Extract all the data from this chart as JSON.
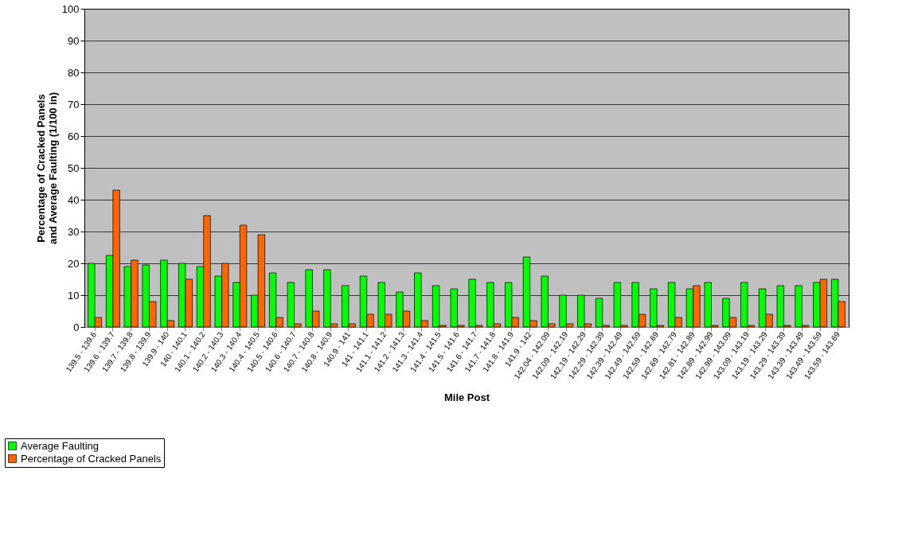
{
  "chart_data": {
    "type": "bar",
    "xlabel": "Mile Post",
    "ylabel": "Percentage of Cracked Panels and Average Faulting (1/100 in)",
    "categories": [
      "139.5 - 139.6",
      "139.6 - 139.7",
      "139.7 - 139.8",
      "139.8 - 139.9",
      "139.9 - 140",
      "140 - 140.1",
      "140.1 - 140.2",
      "140.2 - 140.3",
      "140.3 - 140.4",
      "140.4 - 140.5",
      "140.5 - 140.6",
      "140.6 - 140.7",
      "140.7 - 140.8",
      "140.8 - 140.9",
      "140.9 - 141",
      "141 - 141.1",
      "141.1 - 141.2",
      "141.2 - 141.3",
      "141.3 - 141.4",
      "141.4 - 141.5",
      "141.5 - 141.6",
      "141.6 - 141.7",
      "141.7 - 141.8",
      "141.8 - 141.9",
      "141.9 - 142",
      "142.04 - 142.09",
      "142.09 - 142.19",
      "142.19 - 142.29",
      "142.29 - 142.39",
      "142.39 - 142.49",
      "142.49 - 142.59",
      "142.59 - 142.69",
      "142.69 - 142.79",
      "142.81 - 142.89",
      "142.89 - 142.99",
      "142.99 - 143.09",
      "143.09 - 143.19",
      "143.19 - 143.29",
      "143.29 - 143.39",
      "143.39 - 143.49",
      "143.49 - 143.59",
      "143.59 - 143.69"
    ],
    "series": [
      {
        "name": "Average Faulting",
        "color": "#00ff00",
        "values": [
          20,
          22.5,
          19,
          19.5,
          21,
          20,
          19,
          16,
          14,
          10,
          17,
          14,
          18,
          18,
          13,
          16,
          14,
          11,
          17,
          13,
          12,
          15,
          14,
          14,
          22,
          16,
          10,
          10,
          9,
          14,
          14,
          12,
          14,
          12,
          14,
          9,
          14,
          12,
          13,
          13,
          14,
          15
        ]
      },
      {
        "name": "Percentage of Cracked Panels",
        "color": "#ff6600",
        "values": [
          3,
          43,
          21,
          8,
          2,
          15,
          35,
          20,
          32,
          29,
          3,
          1,
          5,
          1,
          1,
          4,
          4,
          5,
          2,
          0.5,
          0.5,
          0.5,
          1,
          3,
          2,
          1,
          1,
          1,
          0.5,
          0.5,
          4,
          0.5,
          3,
          13,
          0.5,
          3,
          0.5,
          4,
          0.5,
          0.5,
          15,
          8
        ]
      }
    ],
    "ylim": [
      0,
      100
    ],
    "yticks": [
      0,
      10,
      20,
      30,
      40,
      50,
      60,
      70,
      80,
      90,
      100
    ],
    "grid": "y",
    "legend": "bottom left"
  }
}
